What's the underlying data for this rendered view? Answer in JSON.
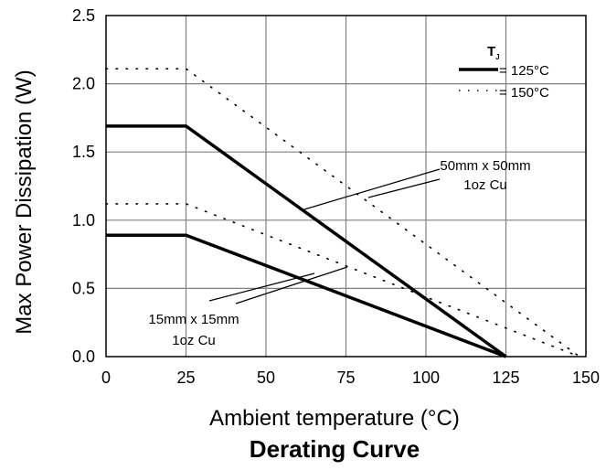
{
  "chart_data": {
    "type": "line",
    "title": "Derating Curve",
    "xlabel": "Ambient temperature (°C)",
    "ylabel": "Max Power Dissipation (W)",
    "xlim": [
      0,
      150
    ],
    "ylim": [
      0,
      2.5
    ],
    "x_ticks": [
      "0",
      "25",
      "50",
      "75",
      "100",
      "125",
      "150"
    ],
    "y_ticks": [
      "0.0",
      "0.5",
      "1.0",
      "1.5",
      "2.0",
      "2.5"
    ],
    "grid": true,
    "legend": {
      "position": "top-right",
      "title": "T",
      "title_subscript": "J",
      "entries": [
        "= 125°C",
        "= 150°C"
      ]
    },
    "series": [
      {
        "style": "solid",
        "tj": "125°C",
        "board": "50mm x 50mm 1oz Cu",
        "x": [
          0,
          25,
          125
        ],
        "y": [
          1.69,
          1.69,
          0
        ]
      },
      {
        "style": "solid",
        "tj": "125°C",
        "board": "15mm x 15mm 1oz Cu",
        "x": [
          0,
          25,
          125
        ],
        "y": [
          0.89,
          0.89,
          0
        ]
      },
      {
        "style": "dotted",
        "tj": "150°C",
        "board": "50mm x 50mm 1oz Cu",
        "x": [
          0,
          25,
          148
        ],
        "y": [
          2.11,
          2.11,
          0
        ]
      },
      {
        "style": "dotted",
        "tj": "150°C",
        "board": "15mm x 15mm 1oz Cu",
        "x": [
          0,
          25,
          148
        ],
        "y": [
          1.12,
          1.12,
          0
        ]
      }
    ],
    "annotations": [
      {
        "lines": [
          "50mm x 50mm",
          "1oz Cu"
        ]
      },
      {
        "lines": [
          "15mm x 15mm",
          "1oz Cu"
        ]
      }
    ]
  }
}
